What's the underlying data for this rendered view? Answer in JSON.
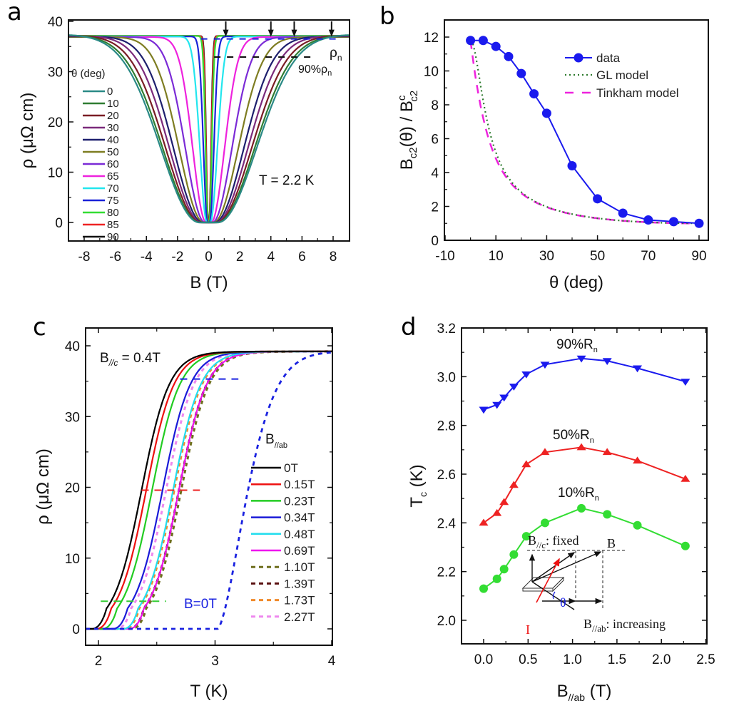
{
  "figure": {
    "panel_labels": [
      "a",
      "b",
      "c",
      "d"
    ]
  },
  "chart_data": [
    {
      "id": "a",
      "type": "line",
      "title": "",
      "xlabel": "B (T)",
      "ylabel": "ρ (μΩ cm)",
      "xlim": [
        -9,
        9
      ],
      "ylim": [
        -3.7,
        40.3
      ],
      "xticks": [
        -8,
        -6,
        -4,
        -2,
        0,
        2,
        4,
        6,
        8
      ],
      "yticks": [
        0,
        10,
        20,
        30,
        40
      ],
      "legend_title": "θ (deg)",
      "legend_position": "left",
      "annotation": "T = 2.2 K",
      "rho_n_label": "ρ",
      "rho_n_sub": "n",
      "ninety_label": "90%ρ",
      "ninety_sub": "n",
      "rho_n_value": 36.5,
      "ninety_value": 32.9,
      "arrows_at_B": [
        1.1,
        4.0,
        5.5,
        7.9
      ],
      "series": [
        {
          "name": "0",
          "color": "#2a8a86",
          "halfwidth_T": 1.7,
          "width_T": 5.2,
          "rho_n": 37.4,
          "rho_far": 36.0
        },
        {
          "name": "10",
          "color": "#2f7d32",
          "halfwidth_T": 1.6,
          "width_T": 5.0,
          "rho_n": 37.3,
          "rho_far": 36.1
        },
        {
          "name": "20",
          "color": "#7a1d24",
          "halfwidth_T": 1.45,
          "width_T": 4.7,
          "rho_n": 37.2,
          "rho_far": 36.2
        },
        {
          "name": "30",
          "color": "#7b2a7b",
          "halfwidth_T": 1.3,
          "width_T": 4.3,
          "rho_n": 37.1,
          "rho_far": 36.3
        },
        {
          "name": "40",
          "color": "#1d1f6e",
          "halfwidth_T": 1.1,
          "width_T": 3.9,
          "rho_n": 37.0,
          "rho_far": 36.4
        },
        {
          "name": "50",
          "color": "#7e7d22",
          "halfwidth_T": 0.9,
          "width_T": 3.3,
          "rho_n": 36.9,
          "rho_far": 36.5
        },
        {
          "name": "60",
          "color": "#7b2bd6",
          "halfwidth_T": 0.7,
          "width_T": 2.6,
          "rho_n": 36.9,
          "rho_far": 36.6
        },
        {
          "name": "65",
          "color": "#ee22dd",
          "halfwidth_T": 0.45,
          "width_T": 1.8,
          "rho_n": 36.9,
          "rho_far": 36.7
        },
        {
          "name": "70",
          "color": "#22e6ee",
          "halfwidth_T": 0.3,
          "width_T": 0.95,
          "rho_n": 37.0,
          "rho_far": 36.8
        },
        {
          "name": "75",
          "color": "#1a22d8",
          "halfwidth_T": 0.2,
          "width_T": 0.55,
          "rho_n": 37.0,
          "rho_far": 36.9
        },
        {
          "name": "80",
          "color": "#33dd33",
          "halfwidth_T": 0.12,
          "width_T": 0.33,
          "rho_n": 37.1,
          "rho_far": 37.0
        },
        {
          "name": "85",
          "color": "#ee2222",
          "halfwidth_T": 0.1,
          "width_T": 0.28,
          "rho_n": 37.1,
          "rho_far": 37.0
        },
        {
          "name": "90",
          "color": "#111111",
          "halfwidth_T": 0.09,
          "width_T": 0.26,
          "rho_n": 37.1,
          "rho_far": 37.0
        }
      ]
    },
    {
      "id": "b",
      "type": "line",
      "title": "",
      "xlabel": "θ (deg)",
      "ylabel_main": "B",
      "ylabel_sub1": "c2",
      "ylabel_mid": "(θ) / B",
      "ylabel_sup": "c",
      "ylabel_sub2": "c2",
      "xlim": [
        -10,
        100
      ],
      "ylim": [
        0,
        13
      ],
      "xticks": [
        -10,
        10,
        30,
        50,
        70,
        90
      ],
      "yticks": [
        0,
        2,
        4,
        6,
        8,
        10,
        12
      ],
      "legend_position": "top-right",
      "series": [
        {
          "name": "data",
          "color": "#1a1aee",
          "style": "solid-markers",
          "x": [
            0,
            5,
            10,
            15,
            20,
            25,
            30,
            40,
            50,
            60,
            70,
            80,
            90
          ],
          "y": [
            11.8,
            11.8,
            11.45,
            10.85,
            9.85,
            8.65,
            7.5,
            4.4,
            2.45,
            1.6,
            1.2,
            1.1,
            1.0
          ]
        },
        {
          "name": "GL model",
          "color": "#2d7a2d",
          "style": "dotted",
          "gamma": 11.8
        },
        {
          "name": "Tinkham model",
          "color": "#ee22dd",
          "style": "dashed",
          "gamma": 11.8
        }
      ]
    },
    {
      "id": "c",
      "type": "line",
      "title": "",
      "xlabel": "T (K)",
      "ylabel": "ρ (μΩ cm)",
      "xlim": [
        1.89,
        4.0
      ],
      "ylim": [
        -2.3,
        42.4
      ],
      "xticks": [
        2,
        3,
        4
      ],
      "yticks": [
        0,
        10,
        20,
        30,
        40
      ],
      "annotation_main": "B",
      "annotation_sub": "//c",
      "annotation_rest": " = 0.4T",
      "legend_title_main": "B",
      "legend_title_sub": "//ab",
      "legend_position": "right",
      "b0_label": "B=0T",
      "b0_curve": {
        "color": "#1a22e0",
        "Tc_mid": 3.12,
        "width": 0.035,
        "rho_n": 39.2
      },
      "guide_lines": [
        {
          "y": 35.3,
          "x0": 2.7,
          "x1": 3.2,
          "color": "#1a22e0"
        },
        {
          "y": 19.6,
          "x0": 2.37,
          "x1": 2.87,
          "color": "#ee2222"
        },
        {
          "y": 3.9,
          "x0": 2.02,
          "x1": 2.58,
          "color": "#33cc33"
        }
      ],
      "series": [
        {
          "name": "0T",
          "color": "#000000",
          "dashed": false,
          "T50": 2.37
        },
        {
          "name": "0.15T",
          "color": "#ee1111",
          "dashed": false,
          "T50": 2.41
        },
        {
          "name": "0.23T",
          "color": "#22cc22",
          "dashed": false,
          "T50": 2.46
        },
        {
          "name": "0.34T",
          "color": "#1a1ad8",
          "dashed": false,
          "T50": 2.55
        },
        {
          "name": "0.48T",
          "color": "#22ddee",
          "dashed": false,
          "T50": 2.64
        },
        {
          "name": "0.69T",
          "color": "#ee11ee",
          "dashed": false,
          "T50": 2.69
        },
        {
          "name": "1.10T",
          "color": "#6f6f1e",
          "dashed": true,
          "T50": 2.71
        },
        {
          "name": "1.39T",
          "color": "#5a1010",
          "dashed": true,
          "T50": 2.69
        },
        {
          "name": "1.73T",
          "color": "#f08a2a",
          "dashed": true,
          "T50": 2.65
        },
        {
          "name": "2.27T",
          "color": "#ee88ee",
          "dashed": true,
          "T50": 2.58
        }
      ]
    },
    {
      "id": "d",
      "type": "line",
      "title": "",
      "xlabel_main": "B",
      "xlabel_sub": "//ab",
      "xlabel_rest": " (T)",
      "ylabel_main": "T",
      "ylabel_sub": "c",
      "ylabel_rest": " (K)",
      "xlim": [
        -0.25,
        2.5
      ],
      "ylim": [
        1.9,
        3.2
      ],
      "xticks": [
        "0.0",
        "0.5",
        "1.0",
        "1.5",
        "2.0",
        "2.5"
      ],
      "yticks": [
        "2.0",
        "2.2",
        "2.4",
        "2.6",
        "2.8",
        "3.0",
        "3.2"
      ],
      "x": [
        0.0,
        0.15,
        0.23,
        0.34,
        0.48,
        0.69,
        1.1,
        1.39,
        1.73,
        2.27
      ],
      "series": [
        {
          "name": "90%R",
          "sub": "n",
          "color": "#1a1aee",
          "marker": "triangle-down",
          "y": [
            2.865,
            2.885,
            2.915,
            2.96,
            3.01,
            3.05,
            3.075,
            3.065,
            3.035,
            2.98
          ]
        },
        {
          "name": "50%R",
          "sub": "n",
          "color": "#ee2222",
          "marker": "triangle-up",
          "y": [
            2.4,
            2.44,
            2.485,
            2.555,
            2.64,
            2.69,
            2.71,
            2.69,
            2.655,
            2.58
          ]
        },
        {
          "name": "10%R",
          "sub": "n",
          "color": "#33dd33",
          "marker": "circle",
          "y": [
            2.13,
            2.17,
            2.21,
            2.27,
            2.345,
            2.4,
            2.46,
            2.435,
            2.39,
            2.305
          ]
        }
      ],
      "inset": {
        "bc_label_main": "B",
        "bc_label_sub": "//c",
        "bc_label_rest": ": fixed",
        "b_label": "B",
        "theta_label": "θ",
        "bab_label_main": "B",
        "bab_label_sub": "//ab",
        "bab_label_rest": ": increasing",
        "current_label": "I"
      }
    }
  ]
}
